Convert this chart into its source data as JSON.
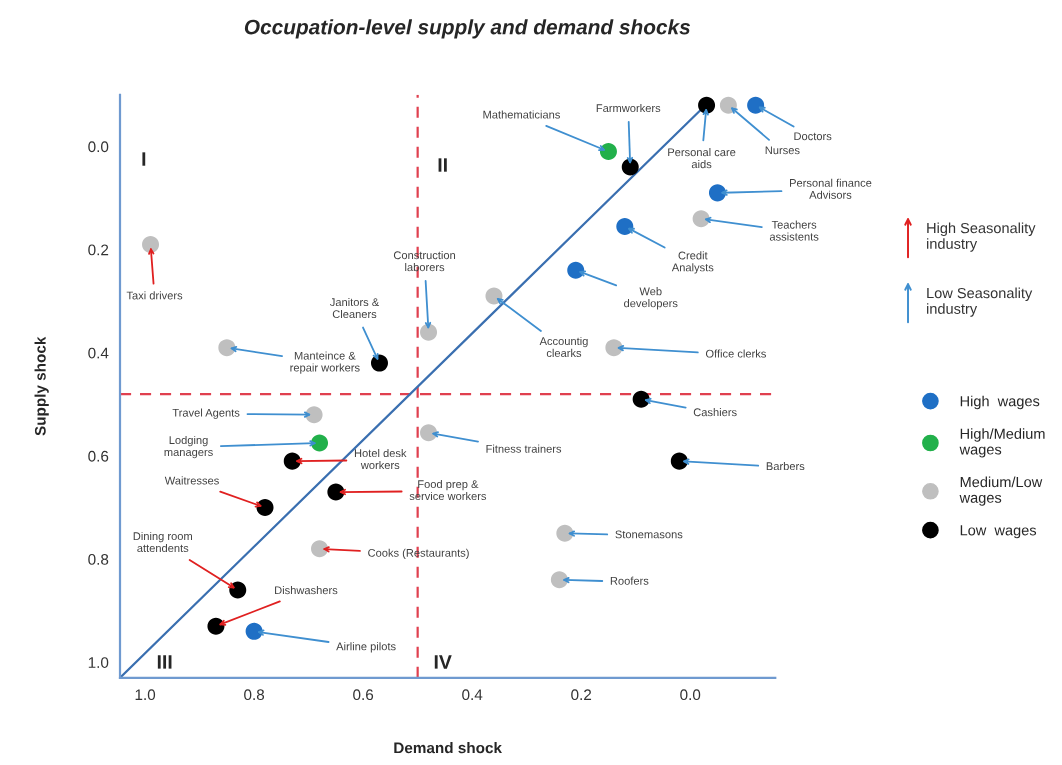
{
  "chart_data": {
    "type": "scatter",
    "title": "Occupation-level supply and demand shocks",
    "xlabel": "Demand shock",
    "ylabel": "Supply shock",
    "xlim": [
      1.046,
      -0.156
    ],
    "ylim": [
      1.03,
      -0.1
    ],
    "xticks": [
      {
        "value": 1,
        "label": "1.0"
      },
      {
        "value": 0.8,
        "label": "0.8"
      },
      {
        "value": 0.6,
        "label": "0.6"
      },
      {
        "value": 0.4,
        "label": "0.4"
      },
      {
        "value": 0.2,
        "label": "0.2"
      },
      {
        "value": 0,
        "label": "0.0"
      }
    ],
    "yticks": [
      {
        "value": 0,
        "label": "0.0"
      },
      {
        "value": 0.2,
        "label": "0.2"
      },
      {
        "value": 0.4,
        "label": "0.4"
      },
      {
        "value": 0.6,
        "label": "0.6"
      },
      {
        "value": 0.8,
        "label": "0.8"
      },
      {
        "value": 1,
        "label": "1.0"
      }
    ],
    "grid": false,
    "legend": "right",
    "marker": "circle",
    "series": [
      {
        "type": "line",
        "marker": "none",
        "color": "#3a6fb0",
        "x": [
          1.046,
          -0.028
        ],
        "values": [
          1.03,
          -0.08
        ]
      },
      {
        "name": "High  wages",
        "color": "#1f6fc5",
        "x": [
          0.21,
          0.12,
          -0.12,
          -0.05,
          0.8
        ],
        "values": [
          0.24,
          0.155,
          -0.08,
          0.09,
          0.94
        ]
      },
      {
        "name": "High/Medium\nwages",
        "color": "#22b04b",
        "x": [
          0.15,
          0.68
        ],
        "values": [
          0.01,
          0.575
        ]
      },
      {
        "name": "Medium/Low\nwages",
        "color": "#bfbfbf",
        "x": [
          0.99,
          0.85,
          0.48,
          0.36,
          -0.07,
          -0.02,
          0.14,
          0.48,
          0.23,
          0.24,
          0.69,
          0.68
        ],
        "values": [
          0.19,
          0.39,
          0.36,
          0.29,
          -0.08,
          0.14,
          0.39,
          0.555,
          0.75,
          0.84,
          0.52,
          0.78
        ]
      },
      {
        "name": "Low  wages",
        "color": "#000000",
        "x": [
          0.57,
          0.11,
          -0.03,
          0.09,
          0.02,
          0.65,
          0.73,
          0.78,
          0.83,
          0.87
        ],
        "values": [
          0.42,
          0.04,
          -0.08,
          0.49,
          0.61,
          0.67,
          0.61,
          0.7,
          0.86,
          0.93
        ]
      }
    ],
    "ref_lines": [
      {
        "axis": "x",
        "value": 0.5,
        "color": "#e0404f",
        "line_style": "dashed"
      },
      {
        "axis": "y",
        "value": 0.48,
        "color": "#e0404f",
        "line_style": "dashed"
      }
    ],
    "annotations": [
      "I",
      "II",
      "III",
      "IV",
      "High Seasonality\nindustry",
      {
        "text": "Taxi drivers",
        "x": 0.99,
        "y": 0.19
      },
      {
        "text": "Food prep &\nservice workers",
        "x": 0.65,
        "y": 0.67
      },
      {
        "text": "Hotel desk\nworkers",
        "x": 0.73,
        "y": 0.61
      },
      {
        "text": "Waitresses",
        "x": 0.78,
        "y": 0.7
      },
      {
        "text": "Cooks (Restaurants)",
        "x": 0.68,
        "y": 0.78
      },
      {
        "text": "Dining room\nattendents",
        "x": 0.83,
        "y": 0.86
      },
      {
        "text": "Dishwashers",
        "x": 0.87,
        "y": 0.93
      },
      "Low Seasonality\nindustry",
      {
        "text": "Manteince &\nrepair workers",
        "x": 0.85,
        "y": 0.39
      },
      {
        "text": "Janitors &\nCleaners",
        "x": 0.57,
        "y": 0.42
      },
      {
        "text": "Construction\nlaborers",
        "x": 0.48,
        "y": 0.36
      },
      {
        "text": "Accountig\nclearks",
        "x": 0.36,
        "y": 0.29
      },
      {
        "text": "Web\ndevelopers",
        "x": 0.21,
        "y": 0.24
      },
      {
        "text": "Credit\nAnalysts",
        "x": 0.12,
        "y": 0.155
      },
      {
        "text": "Mathematicians",
        "x": 0.15,
        "y": 0.01
      },
      {
        "text": "Farmworkers",
        "x": 0.11,
        "y": 0.04
      },
      {
        "text": "Personal care\naids",
        "x": -0.03,
        "y": -0.08
      },
      {
        "text": "Nurses",
        "x": -0.07,
        "y": -0.08
      },
      {
        "text": "Doctors",
        "x": -0.12,
        "y": -0.08
      },
      {
        "text": "Personal finance\nAdvisors",
        "x": -0.05,
        "y": 0.09
      },
      {
        "text": "Teachers\nassistents",
        "x": -0.02,
        "y": 0.14
      },
      {
        "text": "Office clerks",
        "x": 0.14,
        "y": 0.39
      },
      {
        "text": "Cashiers",
        "x": 0.09,
        "y": 0.49
      },
      {
        "text": "Barbers",
        "x": 0.02,
        "y": 0.61
      },
      {
        "text": "Fitness trainers",
        "x": 0.48,
        "y": 0.555
      },
      {
        "text": "Travel Agents",
        "x": 0.69,
        "y": 0.52
      },
      {
        "text": "Lodging\nmanagers",
        "x": 0.68,
        "y": 0.575
      },
      {
        "text": "Stonemasons",
        "x": 0.23,
        "y": 0.75
      },
      {
        "text": "Roofers",
        "x": 0.24,
        "y": 0.84
      },
      {
        "text": "Airline pilots",
        "x": 0.8,
        "y": 0.94
      }
    ]
  }
}
